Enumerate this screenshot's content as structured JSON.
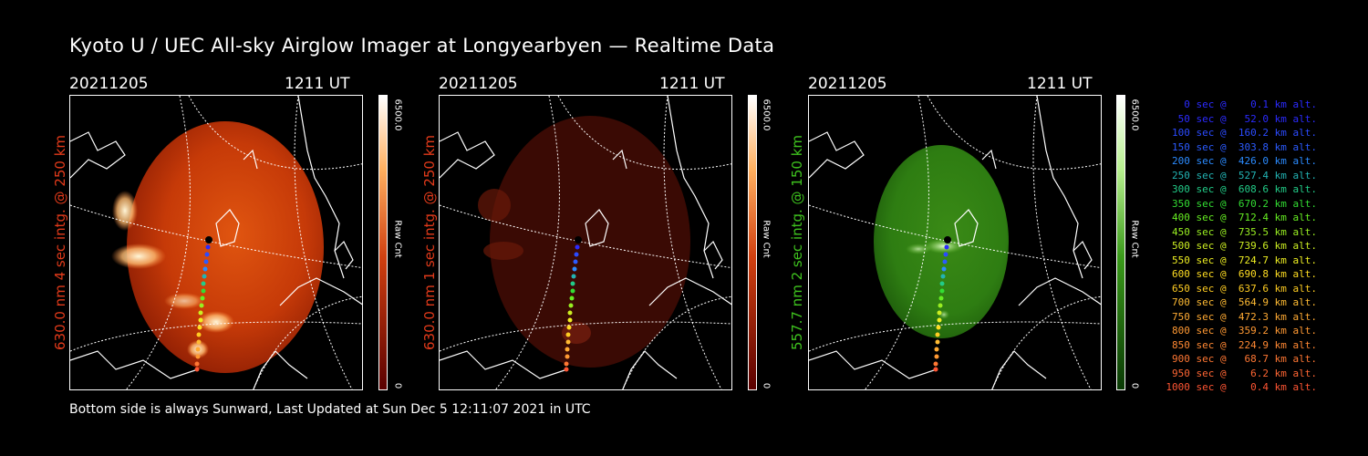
{
  "title": "Kyoto U / UEC All-sky Airglow Imager at Longyearbyen — Realtime Data",
  "panels": [
    {
      "date": "20211205",
      "time": "1211 UT",
      "side_label": "630.0 nm 4 sec intg. @ 250 km",
      "side_color": "#e23a1a",
      "colorbar_max": "6500.0",
      "colorbar_unit": "Raw Cnt",
      "colorbar_min": "0"
    },
    {
      "date": "20211205",
      "time": "1211 UT",
      "side_label": "630.0 nm 1 sec intg. @ 250 km",
      "side_color": "#e23a1a",
      "colorbar_max": "6500.0",
      "colorbar_unit": "Raw Cnt",
      "colorbar_min": "0"
    },
    {
      "date": "20211205",
      "time": "1211 UT",
      "side_label": "557.7 nm 2 sec intg. @ 150 km",
      "side_color": "#3ec21e",
      "colorbar_max": "6500.0",
      "colorbar_unit": "Raw Cnt",
      "colorbar_min": "0"
    }
  ],
  "footer": "Bottom side is always Sunward, Last Updated at Sun Dec  5 12:11:07 2021 in UTC",
  "legend": [
    {
      "text": "   0 sec @    0.1 km alt.",
      "color": "#2b2bff"
    },
    {
      "text": "  50 sec @   52.0 km alt.",
      "color": "#2b2bff"
    },
    {
      "text": " 100 sec @  160.2 km alt.",
      "color": "#2b4bff"
    },
    {
      "text": " 150 sec @  303.8 km alt.",
      "color": "#2b5bff"
    },
    {
      "text": " 200 sec @  426.0 km alt.",
      "color": "#2b8bff"
    },
    {
      "text": " 250 sec @  527.4 km alt.",
      "color": "#22b3b3"
    },
    {
      "text": " 300 sec @  608.6 km alt.",
      "color": "#22cc88"
    },
    {
      "text": " 350 sec @  670.2 km alt.",
      "color": "#33dd33"
    },
    {
      "text": " 400 sec @  712.4 km alt.",
      "color": "#66ee22"
    },
    {
      "text": " 450 sec @  735.5 km alt.",
      "color": "#99ee22"
    },
    {
      "text": " 500 sec @  739.6 km alt.",
      "color": "#ccee22"
    },
    {
      "text": " 550 sec @  724.7 km alt.",
      "color": "#eeee22"
    },
    {
      "text": " 600 sec @  690.8 km alt.",
      "color": "#ffdd22"
    },
    {
      "text": " 650 sec @  637.6 km alt.",
      "color": "#ffcc22"
    },
    {
      "text": " 700 sec @  564.9 km alt.",
      "color": "#ffbb33"
    },
    {
      "text": " 750 sec @  472.3 km alt.",
      "color": "#ffaa33"
    },
    {
      "text": " 800 sec @  359.2 km alt.",
      "color": "#ff9933"
    },
    {
      "text": " 850 sec @  224.9 km alt.",
      "color": "#ff8833"
    },
    {
      "text": " 900 sec @   68.7 km alt.",
      "color": "#ff7733"
    },
    {
      "text": " 950 sec @    6.2 km alt.",
      "color": "#ff6633"
    },
    {
      "text": "1000 sec @    0.4 km alt.",
      "color": "#ff5533"
    }
  ],
  "colors": {
    "background": "#000000",
    "red_image": "#cc3300",
    "dim_red_image": "#3a0a04",
    "green_image": "#2e7d12",
    "colorbar_red_top": "#ffffff",
    "colorbar_red_bottom": "#5a0000",
    "colorbar_green_bottom": "#0a3a05"
  },
  "icons": [
    "coastline-map",
    "satellite-track"
  ]
}
